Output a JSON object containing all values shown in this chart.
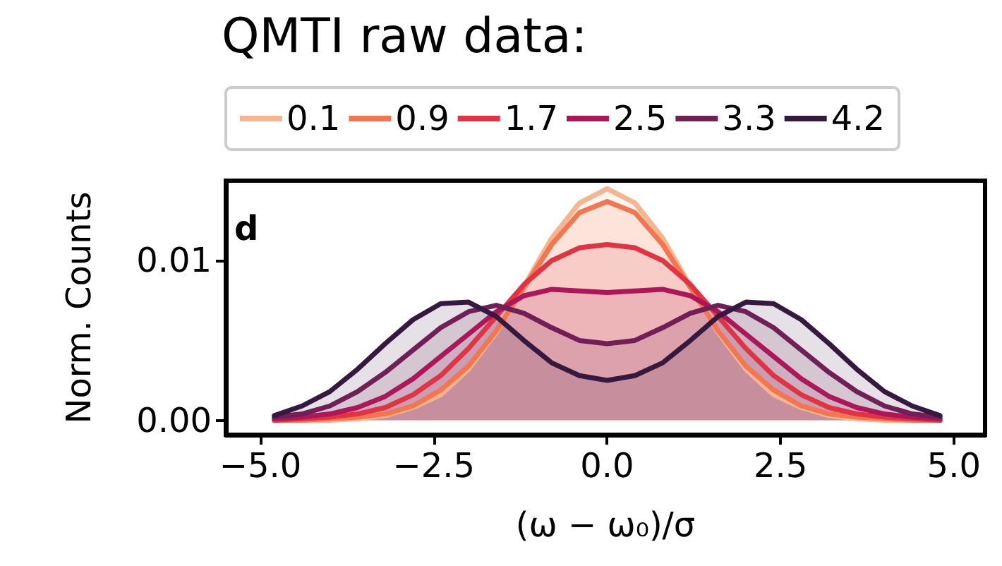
{
  "chart_data": {
    "type": "area",
    "title": "QMTI raw data:",
    "xlabel": "(ω − ω₀)/σ",
    "ylabel": "Norm. Counts",
    "annotations": [
      "d"
    ],
    "x": [
      -4.8,
      -4.4,
      -4.0,
      -3.6,
      -3.2,
      -2.8,
      -2.4,
      -2.0,
      -1.6,
      -1.2,
      -0.8,
      -0.4,
      0,
      0.4,
      0.8,
      1.2,
      1.6,
      2.0,
      2.4,
      2.8,
      3.2,
      3.6,
      4.0,
      4.4,
      4.8
    ],
    "series": [
      {
        "name": "0.1",
        "color": "#f6b48f",
        "values": [
          0,
          0,
          0,
          0.0001,
          0.0003,
          0.0008,
          0.0016,
          0.0032,
          0.0055,
          0.0084,
          0.0114,
          0.0136,
          0.0145,
          0.0136,
          0.0114,
          0.0084,
          0.0055,
          0.0032,
          0.0016,
          0.0008,
          0.0003,
          0.0001,
          0,
          0,
          0
        ]
      },
      {
        "name": "0.9",
        "color": "#f37651",
        "values": [
          0,
          0,
          0.0001,
          0.0002,
          0.0004,
          0.0009,
          0.0019,
          0.0034,
          0.0056,
          0.0083,
          0.011,
          0.013,
          0.0137,
          0.013,
          0.011,
          0.0083,
          0.0056,
          0.0034,
          0.0019,
          0.0009,
          0.0004,
          0.0002,
          0.0001,
          0,
          0
        ]
      },
      {
        "name": "1.7",
        "color": "#e13342",
        "values": [
          0,
          0.0001,
          0.0002,
          0.0004,
          0.0008,
          0.0016,
          0.0028,
          0.0045,
          0.0065,
          0.0085,
          0.01,
          0.0108,
          0.011,
          0.0108,
          0.01,
          0.0085,
          0.0065,
          0.0045,
          0.0028,
          0.0016,
          0.0008,
          0.0004,
          0.0002,
          0.0001,
          0
        ]
      },
      {
        "name": "2.5",
        "color": "#ad1759",
        "values": [
          0.0001,
          0.0002,
          0.0004,
          0.0008,
          0.0015,
          0.0026,
          0.004,
          0.0054,
          0.0068,
          0.0078,
          0.0082,
          0.0081,
          0.008,
          0.0081,
          0.0082,
          0.0078,
          0.0068,
          0.0054,
          0.004,
          0.0026,
          0.0015,
          0.0008,
          0.0004,
          0.0002,
          0.0001
        ]
      },
      {
        "name": "3.3",
        "color": "#701f57",
        "values": [
          0.0002,
          0.0004,
          0.0009,
          0.0018,
          0.003,
          0.0044,
          0.0058,
          0.0068,
          0.0072,
          0.0067,
          0.0058,
          0.005,
          0.0048,
          0.005,
          0.0058,
          0.0067,
          0.0072,
          0.0068,
          0.0058,
          0.0044,
          0.003,
          0.0018,
          0.0009,
          0.0004,
          0.0002
        ]
      },
      {
        "name": "4.2",
        "color": "#35193e",
        "values": [
          0.0003,
          0.0009,
          0.0018,
          0.0032,
          0.0048,
          0.0063,
          0.0073,
          0.0074,
          0.0065,
          0.005,
          0.0036,
          0.0028,
          0.0025,
          0.0028,
          0.0036,
          0.005,
          0.0065,
          0.0074,
          0.0073,
          0.0063,
          0.0048,
          0.0032,
          0.0018,
          0.0009,
          0.0003
        ]
      }
    ],
    "xlim": [
      -5.5,
      5.45
    ],
    "ylim": [
      -0.0009,
      0.015
    ],
    "xticks": [
      {
        "value": -5,
        "label": "−5.0"
      },
      {
        "value": -2.5,
        "label": "−2.5"
      },
      {
        "value": 0,
        "label": "0.0"
      },
      {
        "value": 2.5,
        "label": "2.5"
      },
      {
        "value": 5,
        "label": "5.0"
      }
    ],
    "yticks": [
      {
        "value": 0,
        "label": "0.00"
      },
      {
        "value": 0.01,
        "label": "0.01"
      }
    ],
    "legend": "top",
    "grid": false,
    "marker": "none",
    "line_style": "solid"
  }
}
